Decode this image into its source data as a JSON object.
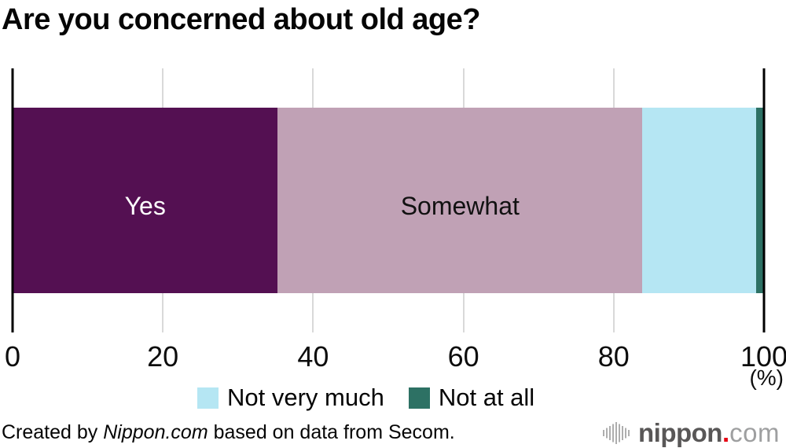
{
  "title": "Are you concerned about old age?",
  "chart_data": {
    "type": "bar",
    "subtype": "horizontal-stacked",
    "title": "Are you concerned about old age?",
    "xlim": [
      0,
      100
    ],
    "xticks": [
      0,
      20,
      40,
      60,
      80,
      100
    ],
    "unit_label": "(%)",
    "gridline_color": "#d9d9d9",
    "axis_color": "#000000",
    "categories": [
      "Yes",
      "Somewhat",
      "Not very much",
      "Not at all"
    ],
    "values": [
      35.3,
      48.5,
      15.2,
      1.0
    ],
    "segments": [
      {
        "label": "Yes",
        "value": 35.3,
        "color": "#541052",
        "text_color": "#ffffff",
        "label_inside": true
      },
      {
        "label": "Somewhat",
        "value": 48.5,
        "color": "#c0a1b5",
        "text_color": "#111111",
        "label_inside": true
      },
      {
        "label": "Not very much",
        "value": 15.2,
        "color": "#b5e6f3",
        "text_color": "#111111",
        "label_inside": false
      },
      {
        "label": "Not at all",
        "value": 1.0,
        "color": "#2d7164",
        "text_color": "#111111",
        "label_inside": false
      }
    ],
    "legend_position": "bottom"
  },
  "legend": {
    "items": [
      {
        "label": "Not very much",
        "color": "#b5e6f3"
      },
      {
        "label": "Not at all",
        "color": "#2d7164"
      }
    ]
  },
  "footer": {
    "prefix": "Created by ",
    "brand": "Nippon.com",
    "suffix": " based on data from Secom."
  },
  "logo": {
    "name": "nippon.com",
    "icon": "soundwave-icon",
    "text_main": "nippon",
    "dot": ".",
    "text_suffix": "com",
    "colors": {
      "icon": "#aeaeae",
      "main": "#595757",
      "dot": "#e60012",
      "suffix": "#9e9fa0"
    }
  }
}
